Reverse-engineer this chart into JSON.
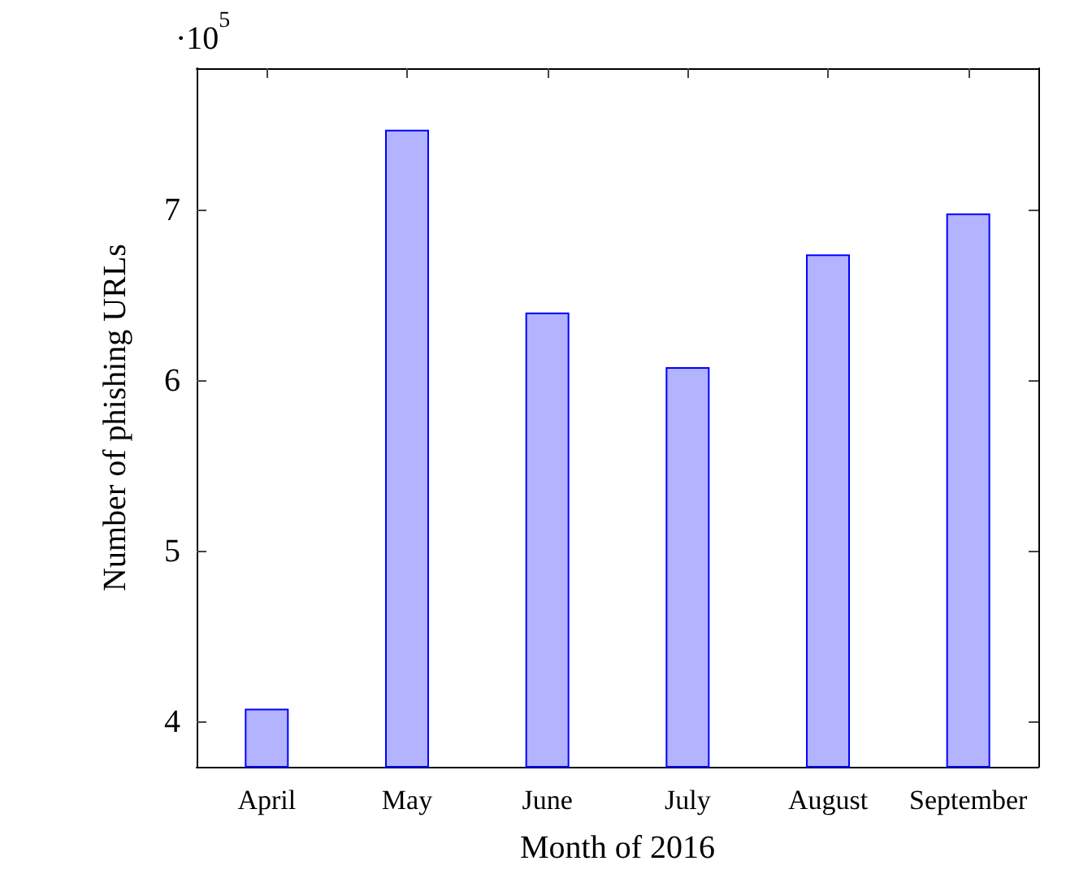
{
  "chart_data": {
    "type": "bar",
    "xlabel": "Month of 2016",
    "ylabel": "Number of phishing URLs",
    "categories": [
      "April",
      "May",
      "June",
      "July",
      "August",
      "September"
    ],
    "values": [
      4.08,
      7.47,
      6.4,
      6.08,
      6.74,
      6.98
    ],
    "color": "#b3b3ff",
    "ylim": [
      3.74,
      7.83
    ],
    "yticks": [
      4,
      5,
      6,
      7
    ],
    "annotations": [
      "·10$^{5}$"
    ],
    "grid": false
  }
}
